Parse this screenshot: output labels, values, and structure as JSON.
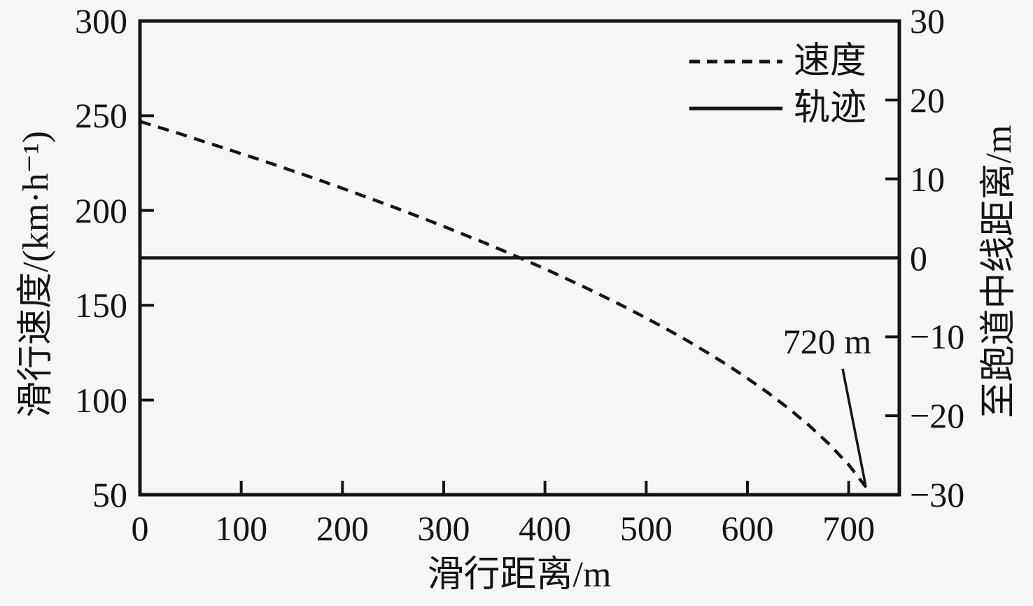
{
  "colors": {
    "line": "#141414",
    "background": "#f6f6f4"
  },
  "chart_data": {
    "type": "line",
    "x_axis": {
      "label": "滑行距离/m",
      "range": [
        0,
        750
      ],
      "ticks": [
        {
          "v": 0,
          "label": "0"
        },
        {
          "v": 100,
          "label": "100"
        },
        {
          "v": 200,
          "label": "200"
        },
        {
          "v": 300,
          "label": "300"
        },
        {
          "v": 400,
          "label": "400"
        },
        {
          "v": 500,
          "label": "500"
        },
        {
          "v": 600,
          "label": "600"
        },
        {
          "v": 700,
          "label": "700"
        }
      ]
    },
    "y_axis_left": {
      "label": "滑行速度/(km·h⁻¹)",
      "range": [
        50,
        300
      ],
      "ticks": [
        {
          "v": 300,
          "label": "300"
        },
        {
          "v": 250,
          "label": "250"
        },
        {
          "v": 200,
          "label": "200"
        },
        {
          "v": 150,
          "label": "150"
        },
        {
          "v": 100,
          "label": "100"
        },
        {
          "v": 50,
          "label": "50"
        }
      ]
    },
    "y_axis_right": {
      "label": "至跑道中线距离/m",
      "range": [
        -30,
        30
      ],
      "ticks": [
        {
          "v": 30,
          "label": "30"
        },
        {
          "v": 20,
          "label": "20"
        },
        {
          "v": 10,
          "label": "10"
        },
        {
          "v": 0,
          "label": "0"
        },
        {
          "v": -10,
          "label": "−10"
        },
        {
          "v": -20,
          "label": "−20"
        },
        {
          "v": -30,
          "label": "−30"
        }
      ]
    },
    "legend": {
      "position": "top-right",
      "entries": [
        {
          "name": "速度",
          "style": "dashed"
        },
        {
          "name": "轨迹",
          "style": "solid"
        }
      ]
    },
    "series": [
      {
        "name": "速度",
        "axis": "left",
        "style": "dashed",
        "points": [
          [
            0,
            247.0
          ],
          [
            20,
            243.7
          ],
          [
            40,
            240.4
          ],
          [
            60,
            236.9
          ],
          [
            80,
            233.5
          ],
          [
            100,
            230.0
          ],
          [
            120,
            226.5
          ],
          [
            140,
            222.9
          ],
          [
            160,
            219.2
          ],
          [
            180,
            215.5
          ],
          [
            200,
            211.7
          ],
          [
            220,
            207.8
          ],
          [
            240,
            203.9
          ],
          [
            260,
            199.9
          ],
          [
            280,
            195.8
          ],
          [
            300,
            191.6
          ],
          [
            320,
            187.3
          ],
          [
            340,
            183.0
          ],
          [
            360,
            178.5
          ],
          [
            380,
            173.9
          ],
          [
            400,
            169.2
          ],
          [
            420,
            164.3
          ],
          [
            440,
            159.3
          ],
          [
            460,
            154.1
          ],
          [
            480,
            148.8
          ],
          [
            500,
            143.2
          ],
          [
            520,
            137.5
          ],
          [
            540,
            131.5
          ],
          [
            560,
            125.1
          ],
          [
            580,
            118.5
          ],
          [
            600,
            111.4
          ],
          [
            620,
            103.9
          ],
          [
            640,
            95.8
          ],
          [
            660,
            87.0
          ],
          [
            680,
            77.1
          ],
          [
            700,
            65.8
          ],
          [
            720,
            52.0
          ]
        ]
      },
      {
        "name": "轨迹",
        "axis": "right",
        "style": "solid",
        "points": [
          [
            0,
            0
          ],
          [
            750,
            0
          ]
        ]
      }
    ],
    "annotation": {
      "text": "720 m",
      "target": {
        "x": 720,
        "speed": 52.0
      }
    }
  }
}
